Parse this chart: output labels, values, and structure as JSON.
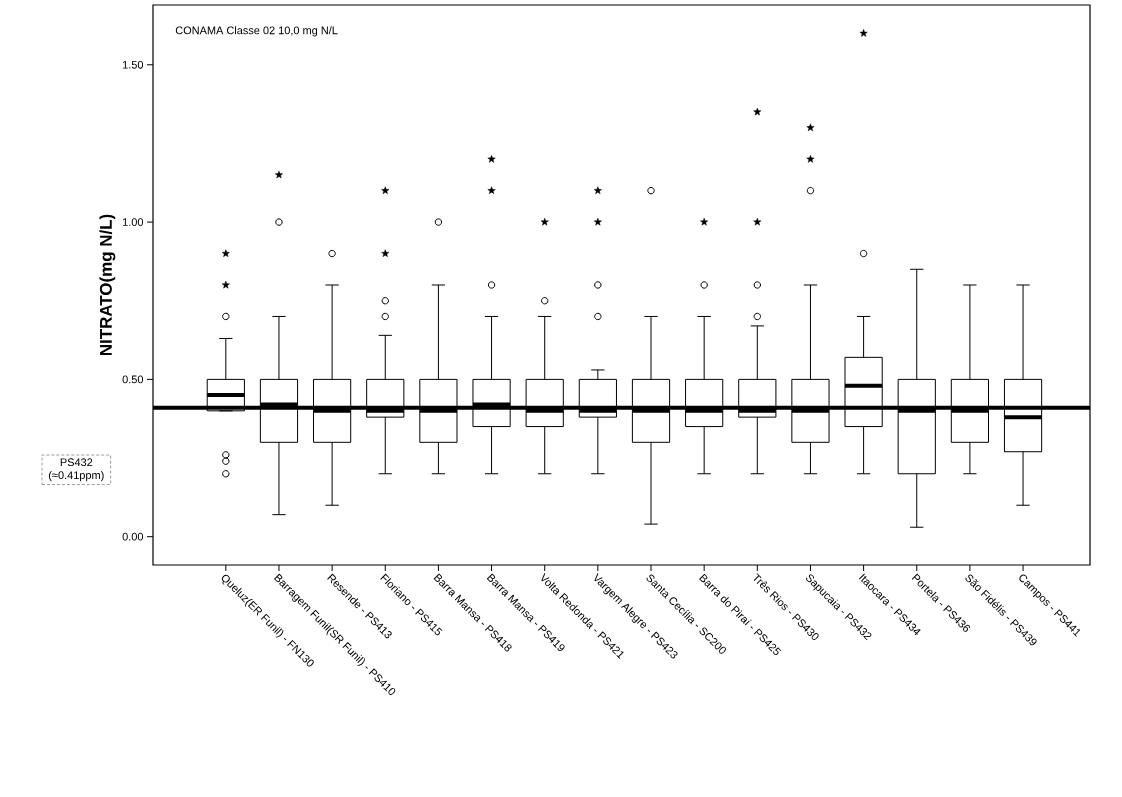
{
  "chart_data": {
    "type": "box",
    "ylabel": "NITRATO(mg N/L)",
    "categories": [
      "Queluz(ER Funil) - FN130",
      "Barragem Funil(SR Funil) - PS410",
      "Resende - PS413",
      "Floriano - PS415",
      "Barra Mansa - PS418",
      "Barra Mansa - PS419",
      "Volta Redonda - PS421",
      "Vargem Alegre - PS423",
      "Santa Cecília - SC200",
      "Barra do Piraí - PS425",
      "Três Rios - PS430",
      "Sapucaia - PS432",
      "Itaocara - PS434",
      "Portela - PS436",
      "São Fidélis - PS439",
      "Campos - PS441"
    ],
    "boxes": [
      {
        "low": 0.4,
        "q1": 0.4,
        "median": 0.45,
        "q3": 0.5,
        "high": 0.63,
        "outliers": [
          0.7,
          0.26,
          0.24,
          0.2
        ]
      },
      {
        "low": 0.07,
        "q1": 0.3,
        "median": 0.42,
        "q3": 0.5,
        "high": 0.7,
        "outliers": [
          1.0
        ]
      },
      {
        "low": 0.1,
        "q1": 0.3,
        "median": 0.4,
        "q3": 0.5,
        "high": 0.8,
        "outliers": [
          0.9
        ]
      },
      {
        "low": 0.2,
        "q1": 0.38,
        "median": 0.4,
        "q3": 0.5,
        "high": 0.64,
        "outliers": [
          0.7,
          0.75
        ]
      },
      {
        "low": 0.2,
        "q1": 0.3,
        "median": 0.4,
        "q3": 0.5,
        "high": 0.8,
        "outliers": [
          1.0
        ]
      },
      {
        "low": 0.2,
        "q1": 0.35,
        "median": 0.42,
        "q3": 0.5,
        "high": 0.7,
        "outliers": [
          0.8
        ]
      },
      {
        "low": 0.2,
        "q1": 0.35,
        "median": 0.4,
        "q3": 0.5,
        "high": 0.7,
        "outliers": [
          0.75
        ]
      },
      {
        "low": 0.2,
        "q1": 0.38,
        "median": 0.4,
        "q3": 0.5,
        "high": 0.53,
        "outliers": [
          0.7,
          0.8
        ]
      },
      {
        "low": 0.04,
        "q1": 0.3,
        "median": 0.4,
        "q3": 0.5,
        "high": 0.7,
        "outliers": [
          1.1
        ]
      },
      {
        "low": 0.2,
        "q1": 0.35,
        "median": 0.4,
        "q3": 0.5,
        "high": 0.7,
        "outliers": [
          0.8
        ]
      },
      {
        "low": 0.2,
        "q1": 0.38,
        "median": 0.4,
        "q3": 0.5,
        "high": 0.67,
        "outliers": [
          0.7,
          0.8
        ]
      },
      {
        "low": 0.2,
        "q1": 0.3,
        "median": 0.4,
        "q3": 0.5,
        "high": 0.8,
        "outliers": [
          1.1
        ]
      },
      {
        "low": 0.2,
        "q1": 0.35,
        "median": 0.48,
        "q3": 0.57,
        "high": 0.7,
        "outliers": [
          0.9
        ]
      },
      {
        "low": 0.03,
        "q1": 0.2,
        "median": 0.4,
        "q3": 0.5,
        "high": 0.85
      },
      {
        "low": 0.2,
        "q1": 0.3,
        "median": 0.4,
        "q3": 0.5,
        "high": 0.8
      },
      {
        "low": 0.1,
        "q1": 0.27,
        "median": 0.38,
        "q3": 0.5,
        "high": 0.8
      }
    ],
    "series": [
      {
        "type": "scatter",
        "marker": "star",
        "color": "#000000",
        "x": [
          "Queluz(ER Funil) - FN130",
          "Queluz(ER Funil) - FN130",
          "Barragem Funil(SR Funil) - PS410",
          "Floriano - PS415",
          "Floriano - PS415",
          "Barra Mansa - PS419",
          "Barra Mansa - PS419",
          "Volta Redonda - PS421",
          "Vargem Alegre - PS423",
          "Vargem Alegre - PS423",
          "Barra do Piraí - PS425",
          "Três Rios - PS430",
          "Três Rios - PS430",
          "Sapucaia - PS432",
          "Sapucaia - PS432",
          "Itaocara - PS434"
        ],
        "values": [
          0.8,
          0.9,
          1.15,
          0.9,
          1.1,
          1.1,
          1.2,
          1.0,
          1.0,
          1.1,
          1.0,
          1.0,
          1.35,
          1.2,
          1.3,
          1.6
        ]
      }
    ],
    "ylim": [
      -0.09,
      1.69
    ],
    "yticks": [
      {
        "value": 0,
        "label": "0.00"
      },
      {
        "value": 0.5,
        "label": "0.50"
      },
      {
        "value": 1,
        "label": "1.00"
      },
      {
        "value": 1.5,
        "label": "1.50"
      }
    ],
    "ref_lines": [
      {
        "axis": "y",
        "value": 0.41,
        "label": "PS432 (≈0.41ppm)",
        "color": "#000000"
      }
    ],
    "annotations": [
      "CONAMA  Classe 02  10,0 mg N/L"
    ],
    "marker": "circle"
  }
}
